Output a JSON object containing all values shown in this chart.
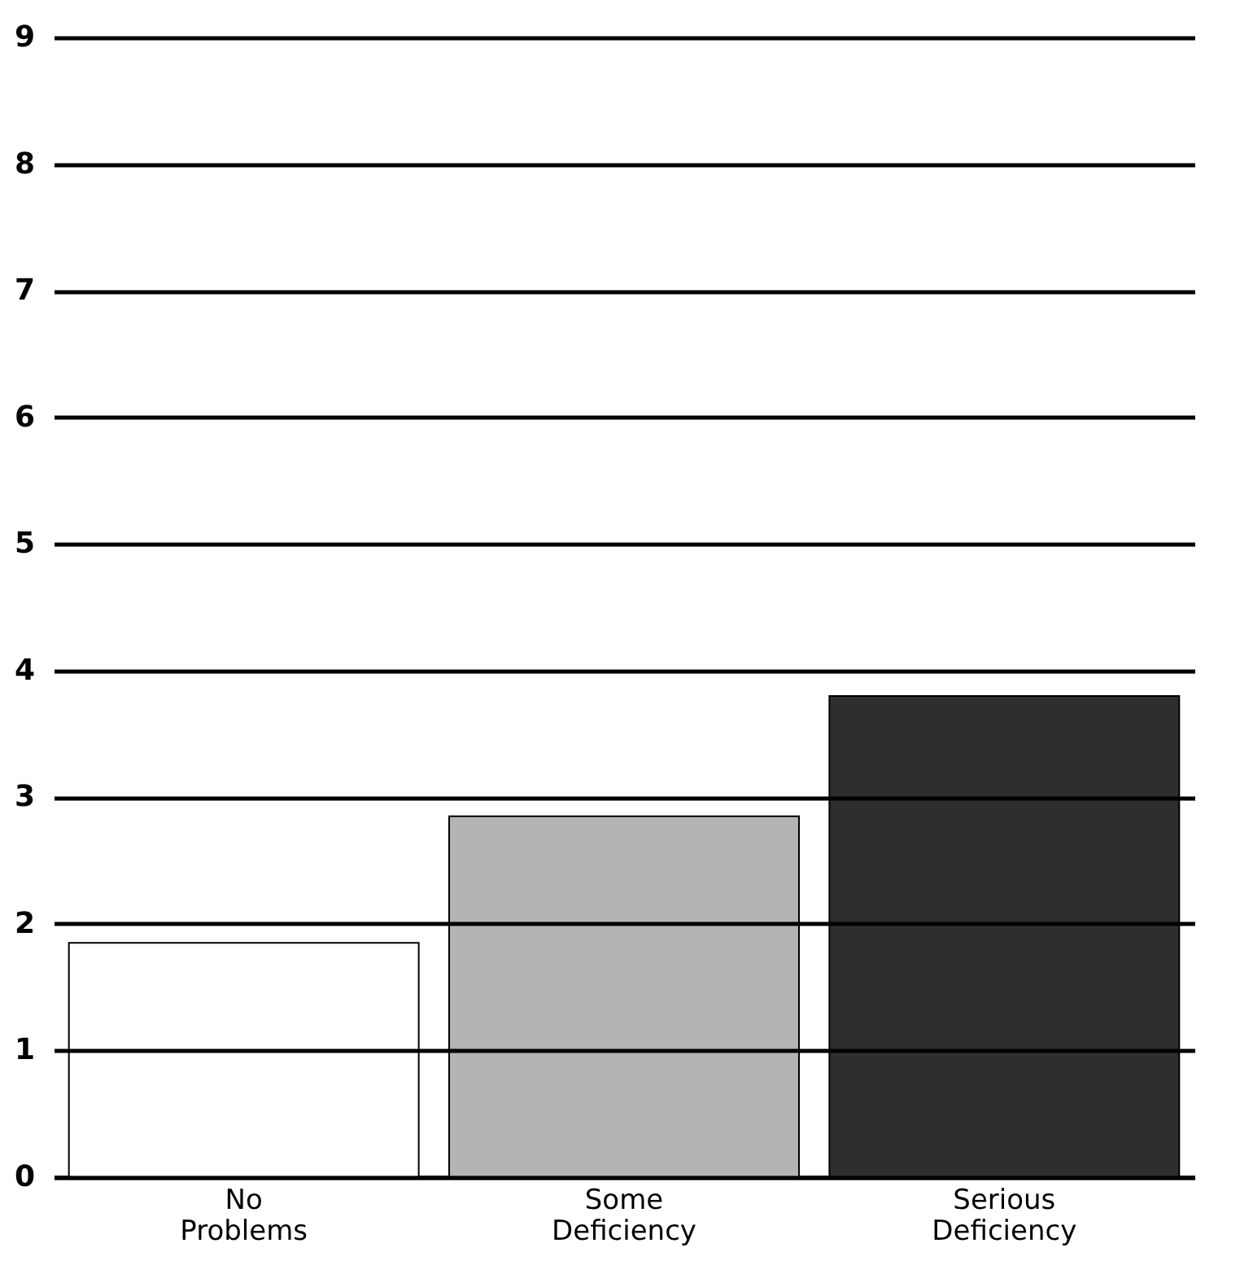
{
  "chart_data": {
    "type": "bar",
    "categories": [
      "No Problems",
      "Some Deficiency",
      "Serious Deficiency"
    ],
    "values": [
      1.85,
      2.85,
      3.8
    ],
    "colors": [
      "#ffffff",
      "#b4b4b4",
      "#2e2e2e"
    ],
    "ylim": [
      0,
      9
    ],
    "yticks": [
      0,
      1,
      2,
      3,
      4,
      5,
      6,
      7,
      8,
      9
    ],
    "grid": "y"
  }
}
